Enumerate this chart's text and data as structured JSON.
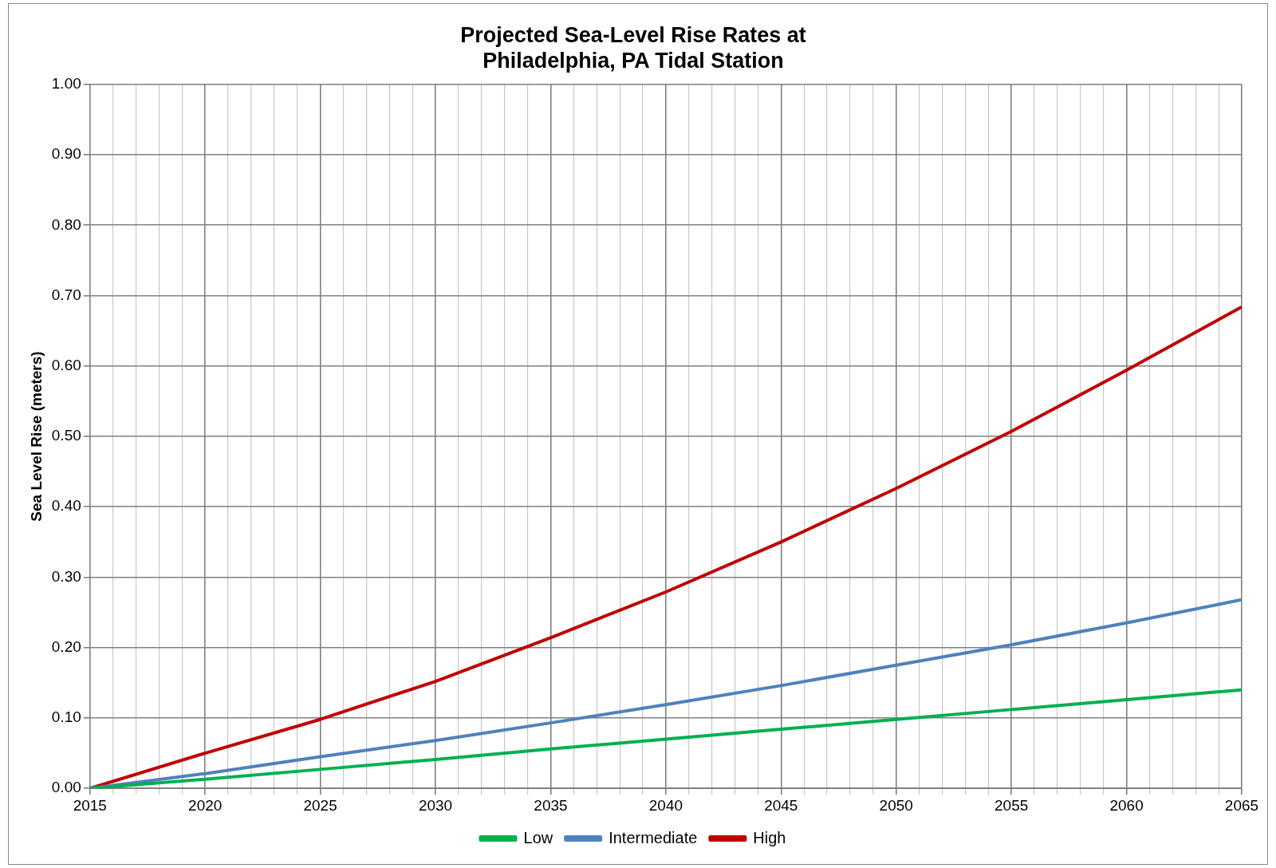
{
  "chart_data": {
    "type": "line",
    "title": "Projected Sea-Level Rise Rates at\nPhiladelphia, PA Tidal Station",
    "ylabel": "Sea Level Rise (meters)",
    "x": [
      2015,
      2020,
      2025,
      2030,
      2035,
      2040,
      2045,
      2050,
      2055,
      2060,
      2065
    ],
    "series": [
      {
        "name": "Low",
        "color": "#00b050",
        "values": [
          0,
          0.013,
          0.027,
          0.041,
          0.056,
          0.07,
          0.084,
          0.098,
          0.112,
          0.126,
          0.14
        ]
      },
      {
        "name": "Intermediate",
        "color": "#4f81bd",
        "values": [
          0,
          0.021,
          0.045,
          0.068,
          0.093,
          0.119,
          0.146,
          0.175,
          0.204,
          0.235,
          0.268
        ]
      },
      {
        "name": "High",
        "color": "#c00000",
        "values": [
          0,
          0.05,
          0.098,
          0.152,
          0.214,
          0.279,
          0.35,
          0.426,
          0.507,
          0.594,
          0.684
        ]
      }
    ],
    "xlim": [
      2015,
      2065
    ],
    "xticks": [
      2015,
      {
        "value": 2016,
        "label": null
      },
      {
        "value": 2017,
        "label": null
      },
      {
        "value": 2018,
        "label": null
      },
      {
        "value": 2019,
        "label": null
      },
      2020,
      {
        "value": 2021,
        "label": null
      },
      {
        "value": 2022,
        "label": null
      },
      {
        "value": 2023,
        "label": null
      },
      {
        "value": 2024,
        "label": null
      },
      2025,
      {
        "value": 2026,
        "label": null
      },
      {
        "value": 2027,
        "label": null
      },
      {
        "value": 2028,
        "label": null
      },
      {
        "value": 2029,
        "label": null
      },
      2030,
      {
        "value": 2031,
        "label": null
      },
      {
        "value": 2032,
        "label": null
      },
      {
        "value": 2033,
        "label": null
      },
      {
        "value": 2034,
        "label": null
      },
      2035,
      {
        "value": 2036,
        "label": null
      },
      {
        "value": 2037,
        "label": null
      },
      {
        "value": 2038,
        "label": null
      },
      {
        "value": 2039,
        "label": null
      },
      2040,
      {
        "value": 2041,
        "label": null
      },
      {
        "value": 2042,
        "label": null
      },
      {
        "value": 2043,
        "label": null
      },
      {
        "value": 2044,
        "label": null
      },
      2045,
      {
        "value": 2046,
        "label": null
      },
      {
        "value": 2047,
        "label": null
      },
      {
        "value": 2048,
        "label": null
      },
      {
        "value": 2049,
        "label": null
      },
      2050,
      {
        "value": 2051,
        "label": null
      },
      {
        "value": 2052,
        "label": null
      },
      {
        "value": 2053,
        "label": null
      },
      {
        "value": 2054,
        "label": null
      },
      2055,
      {
        "value": 2056,
        "label": null
      },
      {
        "value": 2057,
        "label": null
      },
      {
        "value": 2058,
        "label": null
      },
      {
        "value": 2059,
        "label": null
      },
      2060,
      {
        "value": 2061,
        "label": null
      },
      {
        "value": 2062,
        "label": null
      },
      {
        "value": 2063,
        "label": null
      },
      {
        "value": 2064,
        "label": null
      },
      2065
    ],
    "ylim": [
      0,
      1
    ],
    "yticks": [
      {
        "value": 0,
        "label": "0.00"
      },
      {
        "value": 0.1,
        "label": "0.10"
      },
      {
        "value": 0.2,
        "label": "0.20"
      },
      {
        "value": 0.3,
        "label": "0.30"
      },
      {
        "value": 0.4,
        "label": "0.40"
      },
      {
        "value": 0.5,
        "label": "0.50"
      },
      {
        "value": 0.6,
        "label": "0.60"
      },
      {
        "value": 0.7,
        "label": "0.70"
      },
      {
        "value": 0.8,
        "label": "0.80"
      },
      {
        "value": 0.9,
        "label": "0.90"
      },
      {
        "value": 1,
        "label": "1.00"
      }
    ],
    "grid": true,
    "legend": "bottom",
    "marker": "none",
    "line_style": "solid"
  }
}
